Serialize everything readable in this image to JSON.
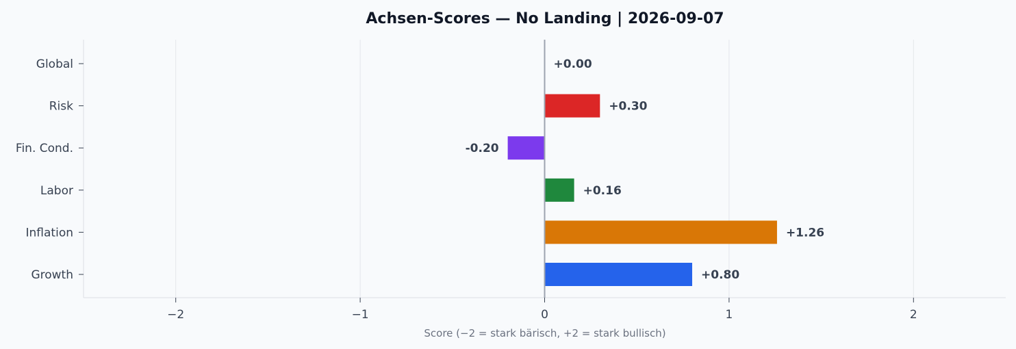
{
  "chart_data": {
    "type": "bar",
    "orientation": "horizontal",
    "title": "Achsen-Scores — No Landing | 2026-09-07",
    "xlabel": "Score (−2 = stark bärisch, +2 = stark bullisch)",
    "ylabel": "",
    "xlim": [
      -2.5,
      2.5
    ],
    "xticks": [
      -2,
      -1,
      0,
      1,
      2
    ],
    "xtick_labels": [
      "−2",
      "−1",
      "0",
      "1",
      "2"
    ],
    "grid": "vertical",
    "categories": [
      "Global",
      "Risk",
      "Fin. Cond.",
      "Labor",
      "Inflation",
      "Growth"
    ],
    "values": [
      0.0,
      0.3,
      -0.2,
      0.16,
      1.26,
      0.8
    ],
    "value_labels": [
      "+0.00",
      "+0.30",
      "-0.20",
      "+0.16",
      "+1.26",
      "+0.80"
    ],
    "colors": [
      "#6b7280",
      "#dc2626",
      "#7c3aed",
      "#1f883d",
      "#d97706",
      "#2563eb"
    ]
  }
}
